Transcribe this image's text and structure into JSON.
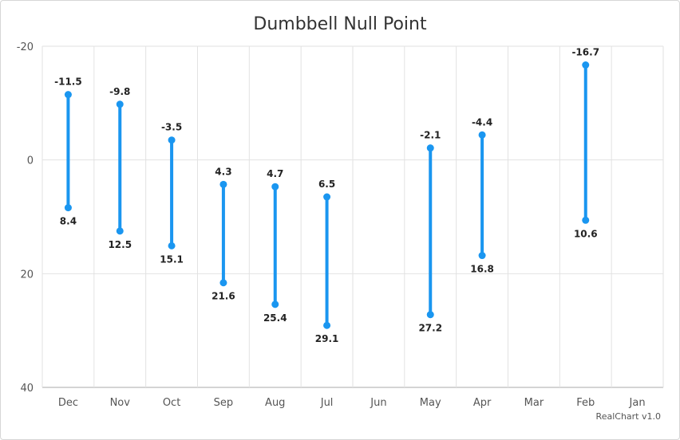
{
  "chart_data": {
    "type": "dumbbell",
    "title": "Dumbbell Null Point",
    "categories": [
      "Dec",
      "Nov",
      "Oct",
      "Sep",
      "Aug",
      "Jul",
      "Jun",
      "May",
      "Apr",
      "Mar",
      "Feb",
      "Jan"
    ],
    "low": [
      -11.5,
      -9.8,
      -3.5,
      4.3,
      4.7,
      6.5,
      null,
      -2.1,
      -4.4,
      null,
      -16.7,
      null
    ],
    "high": [
      8.4,
      12.5,
      15.1,
      21.6,
      25.4,
      29.1,
      null,
      27.2,
      16.8,
      null,
      10.6,
      null
    ],
    "y_axis": {
      "min": -20,
      "max": 40,
      "reversed": true,
      "ticks": [
        -20,
        0,
        20,
        40
      ]
    },
    "grid": true,
    "series_color": "#1a96f0"
  },
  "credits": "RealChart v1.0"
}
